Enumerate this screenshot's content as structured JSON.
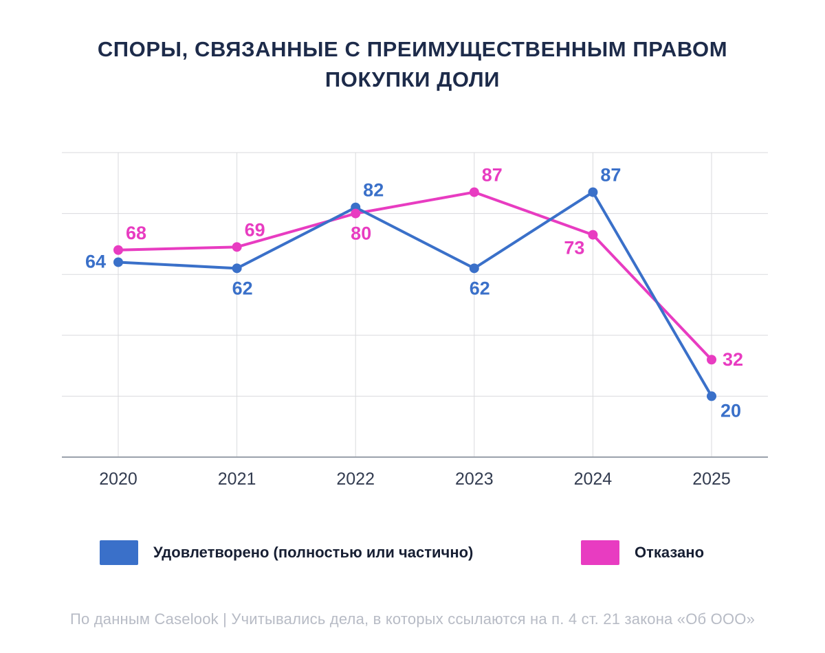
{
  "title": "СПОРЫ, СВЯЗАННЫЕ С ПРЕИМУЩЕСТВЕННЫМ ПРАВОМ ПОКУПКИ ДОЛИ",
  "footer": "По данным Caselook  |  Учитывались дела, в которых ссылаются на п. 4 ст. 21 закона «Об ООО»",
  "colors": {
    "blue": "#3a70c9",
    "pink": "#e83cc1",
    "title_text": "#1d2b4a",
    "grid": "#d9dadd",
    "axis": "#9aa1ab",
    "tick_label": "#333c50",
    "footer_text": "#b7bbc5"
  },
  "chart_data": {
    "type": "line",
    "x": [
      "2020",
      "2021",
      "2022",
      "2023",
      "2024",
      "2025"
    ],
    "series": [
      {
        "name": "Удовлетворено (полностью или частично)",
        "color": "#3a70c9",
        "values": [
          64,
          62,
          82,
          62,
          87,
          20
        ],
        "label_positions": [
          "left",
          "below",
          "above",
          "below",
          "above",
          "below-right"
        ]
      },
      {
        "name": "Отказано",
        "color": "#e83cc1",
        "values": [
          68,
          69,
          80,
          87,
          73,
          32
        ],
        "label_positions": [
          "above",
          "above",
          "below",
          "above",
          "below-left",
          "right"
        ]
      }
    ],
    "ylim": [
      0,
      100
    ],
    "ytick_step": 20,
    "grid": true,
    "legend_position": "bottom"
  }
}
